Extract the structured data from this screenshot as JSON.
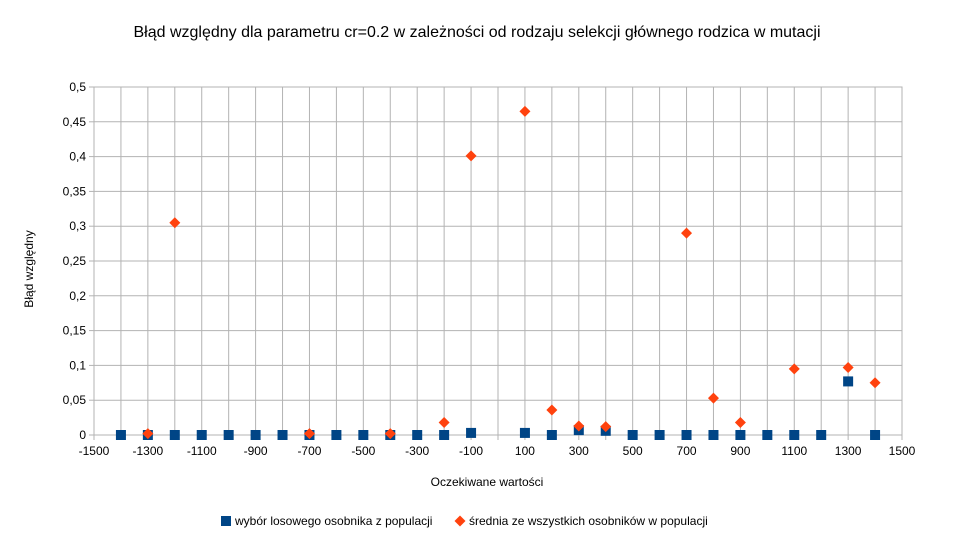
{
  "chart_data": {
    "type": "scatter",
    "title": "Błąd względny dla parametru cr=0.2 w zależności od rodzaju selekcji głównego rodzica w mutacji",
    "xlabel": "Oczekiwane wartości",
    "ylabel": "Błąd względny",
    "xlim": [
      -1500,
      1500
    ],
    "ylim": [
      0,
      0.5
    ],
    "x_ticks": [
      -1500,
      -1300,
      -1100,
      -900,
      -700,
      -500,
      -300,
      -100,
      100,
      300,
      500,
      700,
      900,
      1100,
      1300,
      1500
    ],
    "x_tick_labels": [
      "-1500",
      "-1300",
      "-1100",
      "-900",
      "-700",
      "-500",
      "-300",
      "-100",
      "100",
      "300",
      "500",
      "700",
      "900",
      "1100",
      "1300",
      "1500"
    ],
    "y_ticks": [
      0,
      0.05,
      0.1,
      0.15,
      0.2,
      0.25,
      0.3,
      0.35,
      0.4,
      0.45,
      0.5
    ],
    "y_tick_labels": [
      "0",
      "0,05",
      "0,1",
      "0,15",
      "0,2",
      "0,25",
      "0,3",
      "0,35",
      "0,4",
      "0,45",
      "0,5"
    ],
    "grid": true,
    "legend_position": "bottom",
    "series": [
      {
        "name": "wybór losowego osobnika z populacji",
        "marker": "square",
        "color": "#004586",
        "x": [
          -1400,
          -1300,
          -1200,
          -1100,
          -1000,
          -900,
          -800,
          -700,
          -600,
          -500,
          -400,
          -300,
          -200,
          -100,
          100,
          200,
          300,
          400,
          500,
          600,
          700,
          800,
          900,
          1000,
          1100,
          1200,
          1300,
          1400
        ],
        "y": [
          0,
          0,
          0,
          0,
          0,
          0,
          0,
          0,
          0,
          0,
          0,
          0,
          0,
          0.003,
          0.003,
          0,
          0.007,
          0.006,
          0,
          0,
          0,
          0,
          0,
          0,
          0,
          0,
          0.077,
          0
        ]
      },
      {
        "name": "średnia ze wszystkich osobników w populacji",
        "marker": "diamond",
        "color": "#ff420e",
        "x": [
          -1300,
          -1200,
          -700,
          -400,
          -200,
          -100,
          100,
          200,
          300,
          400,
          700,
          800,
          900,
          1100,
          1300,
          1400
        ],
        "y": [
          0.002,
          0.305,
          0.002,
          0.002,
          0.018,
          0.401,
          0.465,
          0.036,
          0.013,
          0.012,
          0.29,
          0.053,
          0.018,
          0.095,
          0.097,
          0.075
        ]
      }
    ]
  }
}
